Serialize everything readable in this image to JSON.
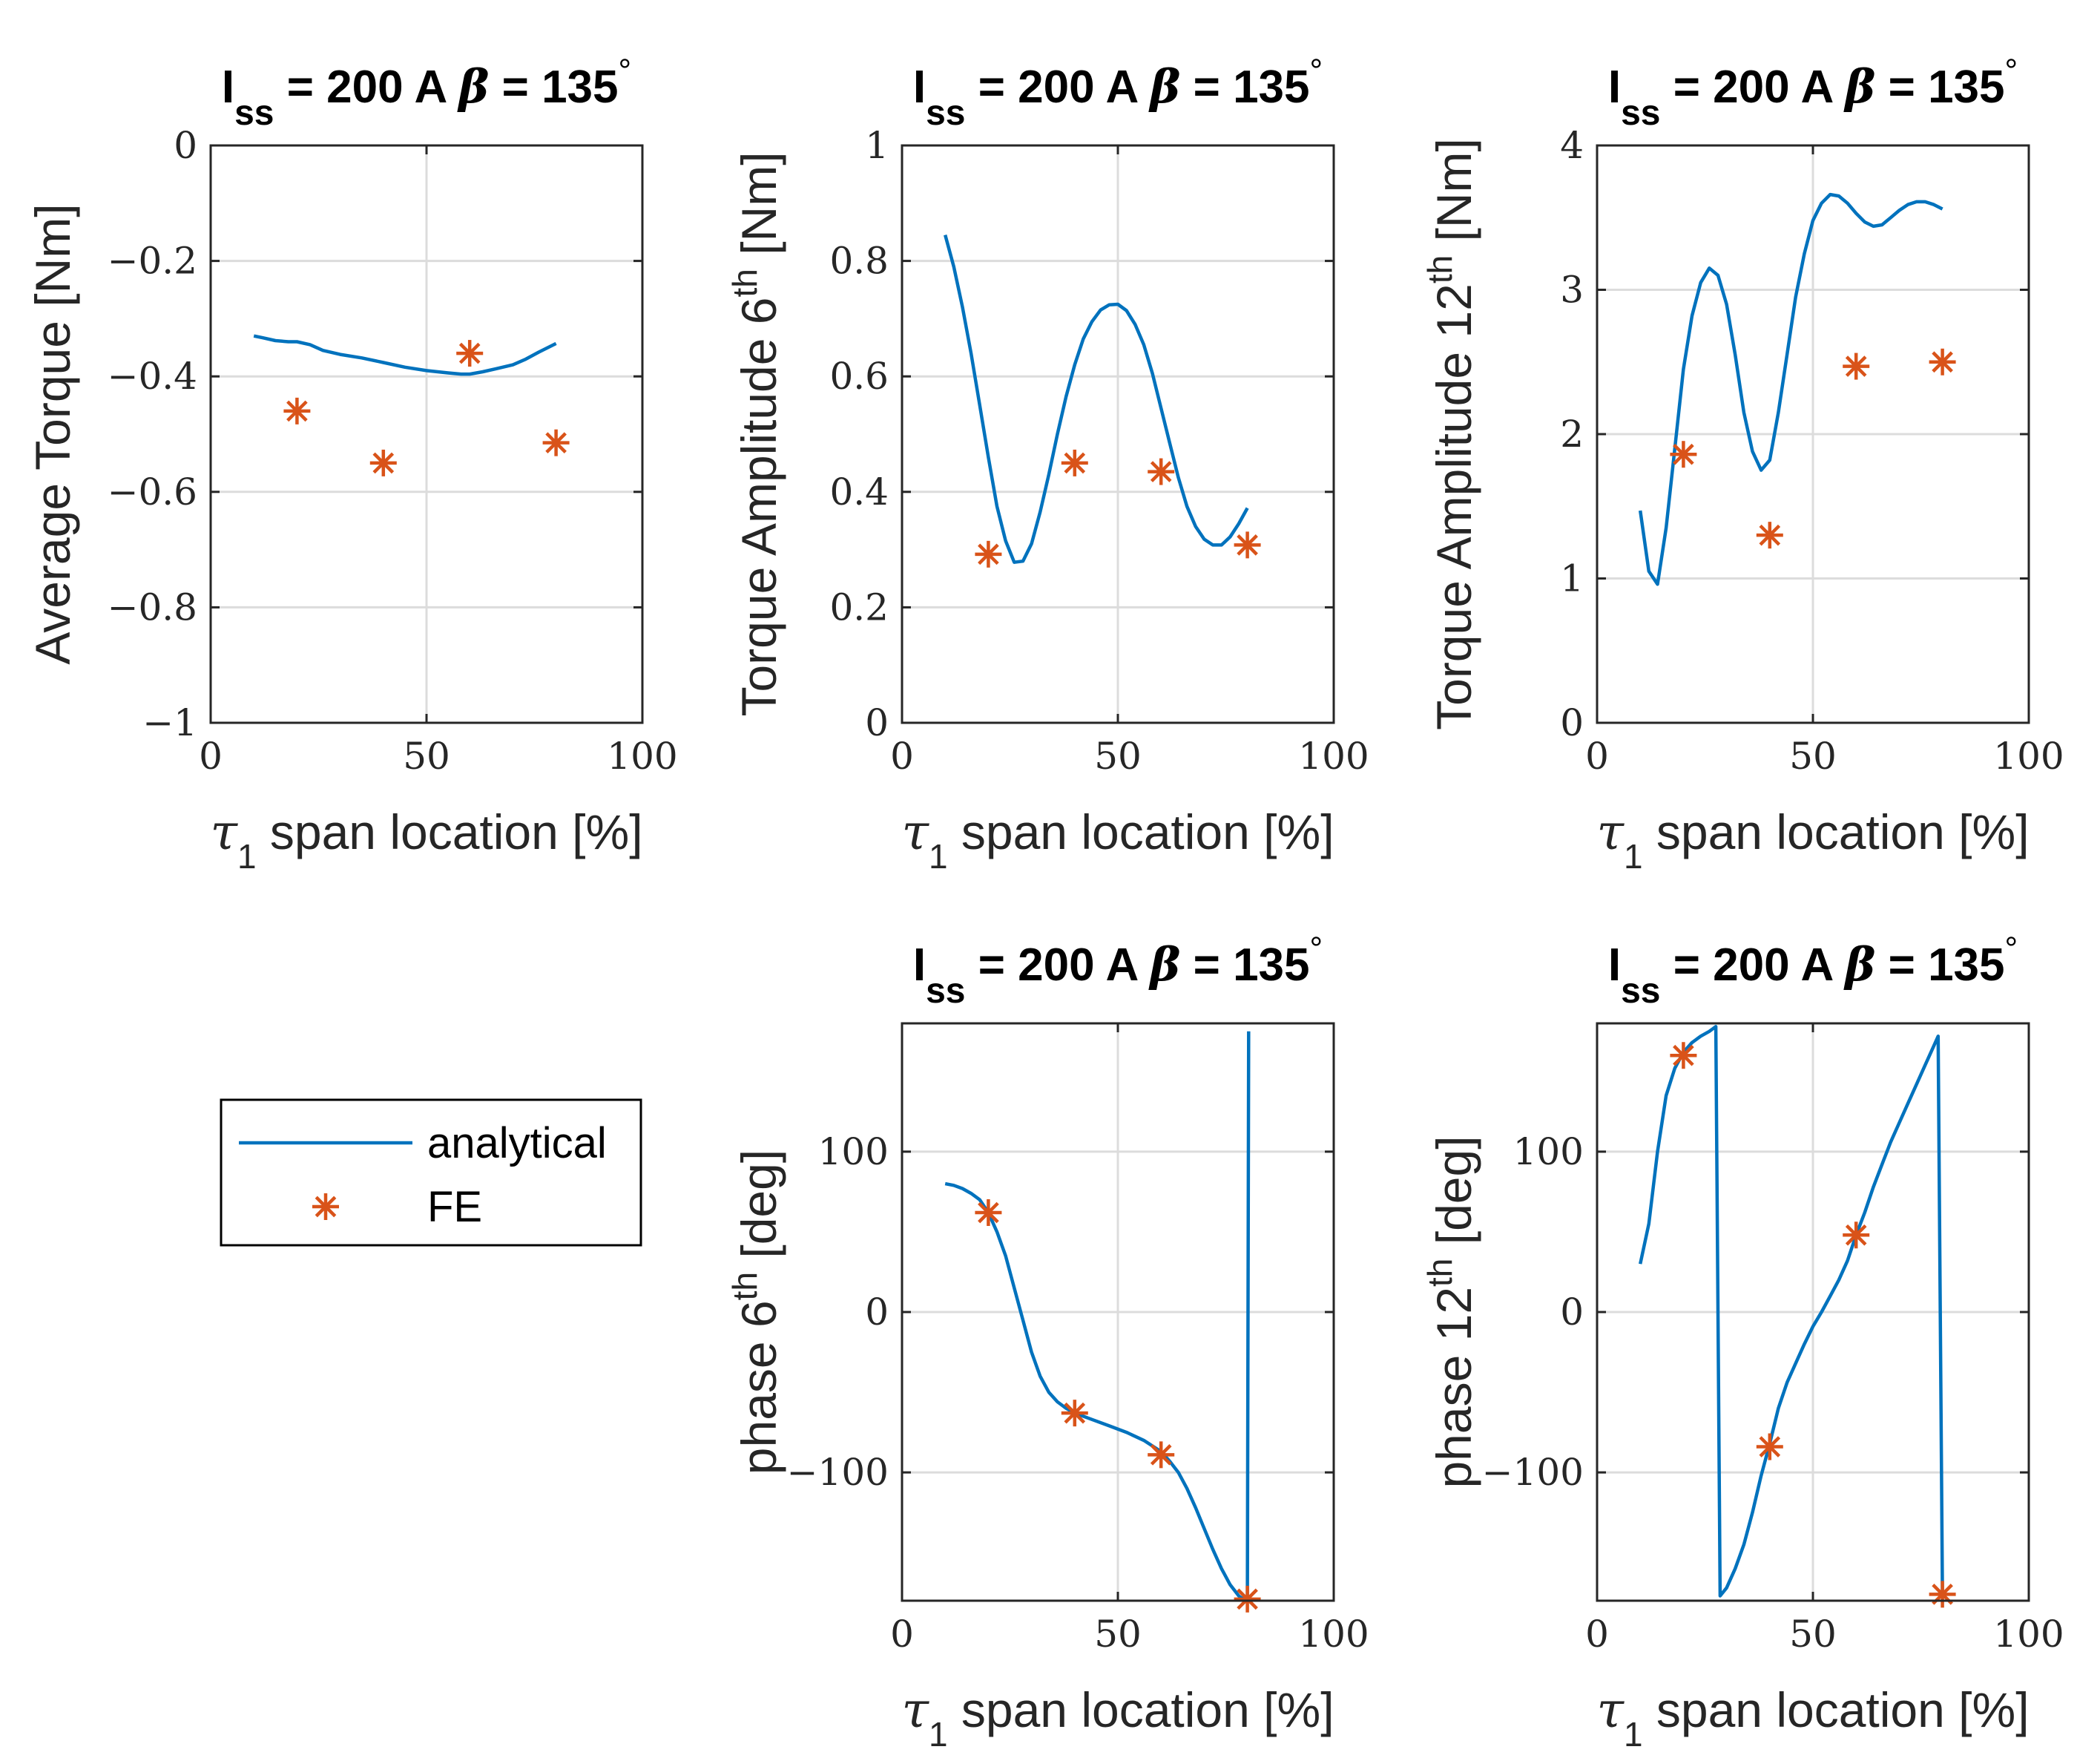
{
  "legend": {
    "analytical_label": "analytical",
    "fe_label": "FE",
    "analytical_color": "#0072BD",
    "fe_color": "#D95319"
  },
  "chart_data": [
    {
      "id": "avg",
      "type": "line",
      "title_main": "I",
      "title_sub": "ss",
      "title_rest": " = 200 A ",
      "title_beta": "β",
      "title_eq": " = 135",
      "title_deg": "°",
      "xlabel_sym": "τ",
      "xlabel_sub": "1",
      "xlabel_rest": " span location [%]",
      "ylabel_pre": "Average Torque [Nm]",
      "ylabel_sup": "",
      "ylabel_post": "",
      "xlim": [
        0,
        100
      ],
      "ylim": [
        -1,
        0
      ],
      "xticks": [
        0,
        50,
        100
      ],
      "xtick_labels": [
        "0",
        "50",
        "100"
      ],
      "yticks": [
        -1,
        -0.8,
        -0.6,
        -0.4,
        -0.2,
        0
      ],
      "ytick_labels": [
        "−1",
        "−0.8",
        "−0.6",
        "−0.4",
        "−0.2",
        "0"
      ],
      "grid": true,
      "series": [
        {
          "name": "analytical",
          "x": [
            10,
            12,
            15,
            18,
            20,
            23,
            26,
            30,
            35,
            40,
            45,
            50,
            55,
            58,
            60,
            63,
            66,
            70,
            73,
            76,
            80
          ],
          "y": [
            -0.33,
            -0.333,
            -0.338,
            -0.34,
            -0.34,
            -0.345,
            -0.355,
            -0.362,
            -0.368,
            -0.376,
            -0.384,
            -0.39,
            -0.394,
            -0.396,
            -0.396,
            -0.392,
            -0.387,
            -0.38,
            -0.37,
            -0.358,
            -0.343
          ]
        },
        {
          "name": "FE",
          "x": [
            20,
            40,
            60,
            80
          ],
          "y": [
            -0.46,
            -0.55,
            -0.36,
            -0.515
          ]
        }
      ]
    },
    {
      "id": "amp6",
      "type": "line",
      "title_main": "I",
      "title_sub": "ss",
      "title_rest": " = 200 A ",
      "title_beta": "β",
      "title_eq": " = 135",
      "title_deg": "°",
      "xlabel_sym": "τ",
      "xlabel_sub": "1",
      "xlabel_rest": " span location [%]",
      "ylabel_pre": "Torque Amplitude 6",
      "ylabel_sup": "th",
      "ylabel_post": " [Nm]",
      "xlim": [
        0,
        100
      ],
      "ylim": [
        0,
        1
      ],
      "xticks": [
        0,
        50,
        100
      ],
      "xtick_labels": [
        "0",
        "50",
        "100"
      ],
      "yticks": [
        0,
        0.2,
        0.4,
        0.6,
        0.8,
        1
      ],
      "ytick_labels": [
        "0",
        "0.2",
        "0.4",
        "0.6",
        "0.8",
        "1"
      ],
      "grid": true,
      "series": [
        {
          "name": "analytical",
          "x": [
            10,
            12,
            14,
            16,
            18,
            20,
            22,
            24,
            26,
            28,
            30,
            32,
            34,
            36,
            38,
            40,
            42,
            44,
            46,
            48,
            50,
            52,
            54,
            56,
            58,
            60,
            62,
            64,
            66,
            68,
            70,
            72,
            74,
            76,
            78,
            80
          ],
          "y": [
            0.845,
            0.79,
            0.72,
            0.64,
            0.55,
            0.46,
            0.375,
            0.315,
            0.278,
            0.28,
            0.31,
            0.365,
            0.43,
            0.5,
            0.565,
            0.62,
            0.665,
            0.695,
            0.715,
            0.724,
            0.725,
            0.714,
            0.69,
            0.655,
            0.605,
            0.545,
            0.485,
            0.425,
            0.375,
            0.34,
            0.318,
            0.308,
            0.308,
            0.322,
            0.345,
            0.372
          ]
        },
        {
          "name": "FE",
          "x": [
            20,
            40,
            60,
            80
          ],
          "y": [
            0.292,
            0.45,
            0.435,
            0.308
          ]
        }
      ]
    },
    {
      "id": "amp12",
      "type": "line",
      "title_main": "I",
      "title_sub": "ss",
      "title_rest": " = 200 A ",
      "title_beta": "β",
      "title_eq": " = 135",
      "title_deg": "°",
      "xlabel_sym": "τ",
      "xlabel_sub": "1",
      "xlabel_rest": " span location [%]",
      "ylabel_pre": "Torque Amplitude 12",
      "ylabel_sup": "th",
      "ylabel_post": " [Nm]",
      "xlim": [
        0,
        100
      ],
      "ylim": [
        0,
        4
      ],
      "xticks": [
        0,
        50,
        100
      ],
      "xtick_labels": [
        "0",
        "50",
        "100"
      ],
      "yticks": [
        0,
        1,
        2,
        3,
        4
      ],
      "ytick_labels": [
        "0",
        "1",
        "2",
        "3",
        "4"
      ],
      "grid": true,
      "series": [
        {
          "name": "analytical",
          "x": [
            10,
            12,
            14,
            16,
            18,
            20,
            22,
            24,
            26,
            28,
            30,
            32,
            34,
            36,
            38,
            40,
            42,
            44,
            46,
            48,
            50,
            52,
            54,
            56,
            58,
            60,
            62,
            64,
            66,
            68,
            70,
            72,
            74,
            76,
            78,
            80
          ],
          "y": [
            1.47,
            1.05,
            0.96,
            1.35,
            1.9,
            2.45,
            2.82,
            3.05,
            3.15,
            3.1,
            2.9,
            2.55,
            2.15,
            1.88,
            1.75,
            1.82,
            2.15,
            2.55,
            2.95,
            3.25,
            3.48,
            3.6,
            3.66,
            3.65,
            3.6,
            3.53,
            3.47,
            3.44,
            3.45,
            3.5,
            3.55,
            3.59,
            3.61,
            3.61,
            3.59,
            3.56
          ]
        },
        {
          "name": "FE",
          "x": [
            20,
            40,
            60,
            80
          ],
          "y": [
            1.86,
            1.3,
            2.47,
            2.5
          ]
        }
      ]
    },
    {
      "id": "ph6",
      "type": "line",
      "title_main": "I",
      "title_sub": "ss",
      "title_rest": " = 200 A ",
      "title_beta": "β",
      "title_eq": " = 135",
      "title_deg": "°",
      "xlabel_sym": "τ",
      "xlabel_sub": "1",
      "xlabel_rest": " span location [%]",
      "ylabel_pre": "phase 6",
      "ylabel_sup": "th",
      "ylabel_post": " [deg]",
      "xlim": [
        0,
        100
      ],
      "ylim": [
        -180,
        180
      ],
      "xticks": [
        0,
        50,
        100
      ],
      "xtick_labels": [
        "0",
        "50",
        "100"
      ],
      "yticks": [
        -100,
        0,
        100
      ],
      "ytick_labels": [
        "−100",
        "0",
        "100"
      ],
      "grid": true,
      "series": [
        {
          "name": "analytical",
          "x": [
            10,
            12,
            14,
            16,
            18,
            20,
            22,
            24,
            26,
            28,
            30,
            32,
            34,
            36,
            38,
            40,
            44,
            48,
            52,
            56,
            60,
            62,
            64,
            66,
            68,
            70,
            72,
            74,
            76,
            78,
            79,
            80,
            80.3
          ],
          "y": [
            80,
            79,
            77,
            74,
            70,
            62,
            50,
            35,
            15,
            -5,
            -25,
            -40,
            -50,
            -56,
            -60,
            -63,
            -67,
            -71,
            -75,
            -80,
            -87,
            -93,
            -100,
            -110,
            -122,
            -135,
            -148,
            -160,
            -170,
            -177,
            -179,
            -177,
            175
          ]
        },
        {
          "name": "FE",
          "x": [
            20,
            40,
            60,
            80
          ],
          "y": [
            62,
            -63,
            -89,
            -179
          ]
        }
      ]
    },
    {
      "id": "ph12",
      "type": "line",
      "title_main": "I",
      "title_sub": "ss",
      "title_rest": " = 200 A ",
      "title_beta": "β",
      "title_eq": " = 135",
      "title_deg": "°",
      "xlabel_sym": "τ",
      "xlabel_sub": "1",
      "xlabel_rest": " span location [%]",
      "ylabel_pre": "phase 12",
      "ylabel_sup": "th",
      "ylabel_post": " [deg]",
      "xlim": [
        0,
        100
      ],
      "ylim": [
        -180,
        180
      ],
      "xticks": [
        0,
        50,
        100
      ],
      "xtick_labels": [
        "0",
        "50",
        "100"
      ],
      "yticks": [
        -100,
        0,
        100
      ],
      "ytick_labels": [
        "−100",
        "0",
        "100"
      ],
      "grid": true,
      "series": [
        {
          "name": "analytical",
          "x": [
            10,
            12,
            14,
            16,
            18,
            20,
            22,
            24,
            26,
            27,
            27.5,
            28.5,
            30,
            32,
            34,
            36,
            38,
            40,
            42,
            44,
            46,
            48,
            50,
            52,
            54,
            56,
            58,
            60,
            62,
            64,
            66,
            68,
            70,
            72,
            74,
            76,
            78,
            79,
            80
          ],
          "y": [
            30,
            55,
            100,
            135,
            152,
            162,
            168,
            172,
            175,
            177,
            178,
            -177,
            -172,
            -160,
            -145,
            -125,
            -102,
            -82,
            -60,
            -44,
            -32,
            -20,
            -9,
            0,
            10,
            20,
            32,
            48,
            62,
            78,
            92,
            106,
            118,
            130,
            142,
            154,
            166,
            172,
            -176
          ]
        },
        {
          "name": "FE",
          "x": [
            20,
            40,
            60,
            80
          ],
          "y": [
            160,
            -84,
            48,
            -176
          ]
        }
      ]
    }
  ]
}
